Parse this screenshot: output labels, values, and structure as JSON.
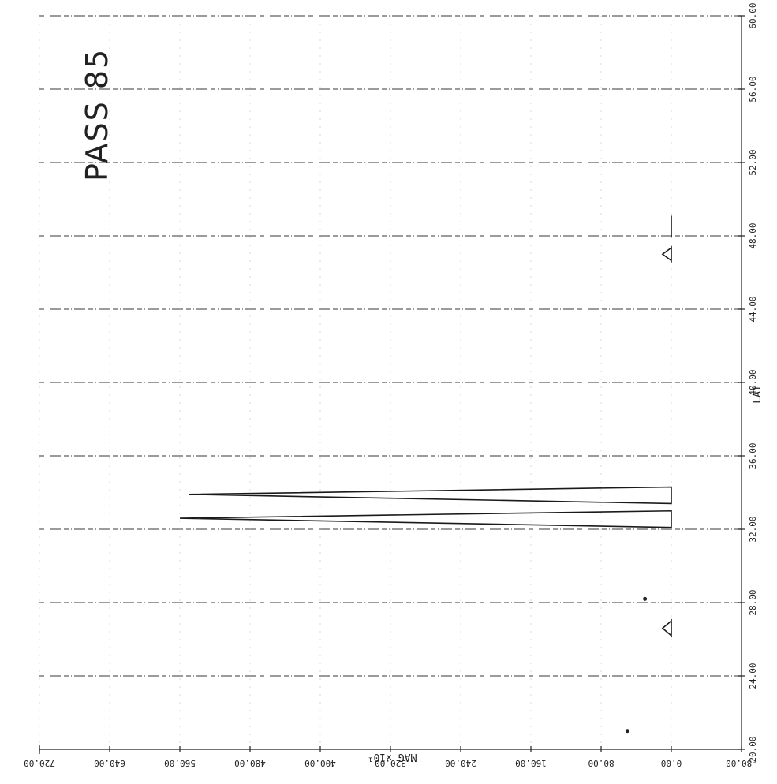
{
  "chart_data": {
    "type": "line",
    "title": "PASS 85",
    "xlabel": "LAT",
    "ylabel": "MAG  ×10¹",
    "x_ticks": [
      "20.00",
      "24.00",
      "28.00",
      "32.00",
      "36.00",
      "40.00",
      "44.00",
      "48.00",
      "52.00",
      "56.00",
      "60.00"
    ],
    "y_ticks": [
      "-80.00",
      "0.00",
      "80.00",
      "160.00",
      "240.00",
      "320.00",
      "400.00",
      "480.00",
      "560.00",
      "640.00",
      "720.00"
    ],
    "xlim": [
      20,
      60
    ],
    "ylim": [
      -80,
      720
    ],
    "grid": true,
    "spikes": [
      {
        "x_start": 32.1,
        "x_peak": 32.6,
        "x_end": 33.0,
        "peak": 560
      },
      {
        "x_start": 33.4,
        "x_peak": 33.9,
        "x_end": 34.3,
        "peak": 550
      }
    ],
    "markers": [
      {
        "type": "chevron",
        "x_center": 26.6,
        "x_half": 0.4,
        "extent": 10
      },
      {
        "type": "chevron",
        "x_center": 47.0,
        "x_half": 0.35,
        "extent": 10
      }
    ],
    "dots": [
      {
        "x": 21.0,
        "y": 50
      },
      {
        "x": 28.2,
        "y": 30
      }
    ],
    "baseline_segment": {
      "x_start": 47.9,
      "x_end": 49.1,
      "y": 0
    }
  }
}
